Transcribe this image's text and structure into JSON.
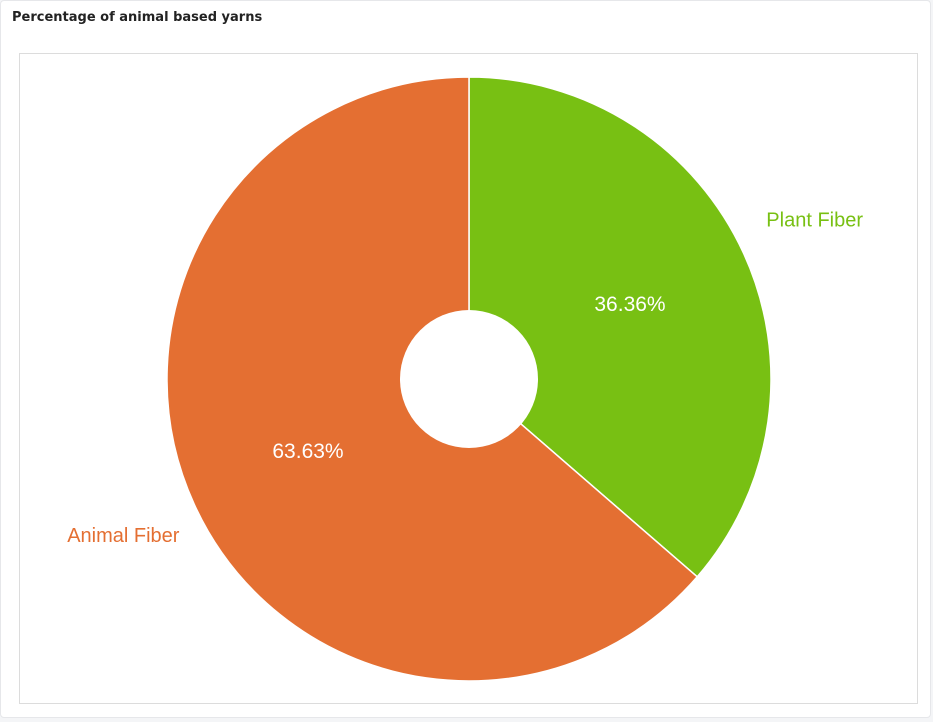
{
  "panel": {
    "title": "Percentage of animal based yarns"
  },
  "chart_data": {
    "type": "pie",
    "donut": true,
    "start_angle_deg": 0,
    "direction": "clockwise",
    "slices": [
      {
        "label": "Plant Fiber",
        "value": 36.36,
        "display": "36.36%",
        "color": "#78c013"
      },
      {
        "label": "Animal Fiber",
        "value": 63.63,
        "display": "63.63%",
        "color": "#e46f32"
      }
    ],
    "legend": "none"
  }
}
